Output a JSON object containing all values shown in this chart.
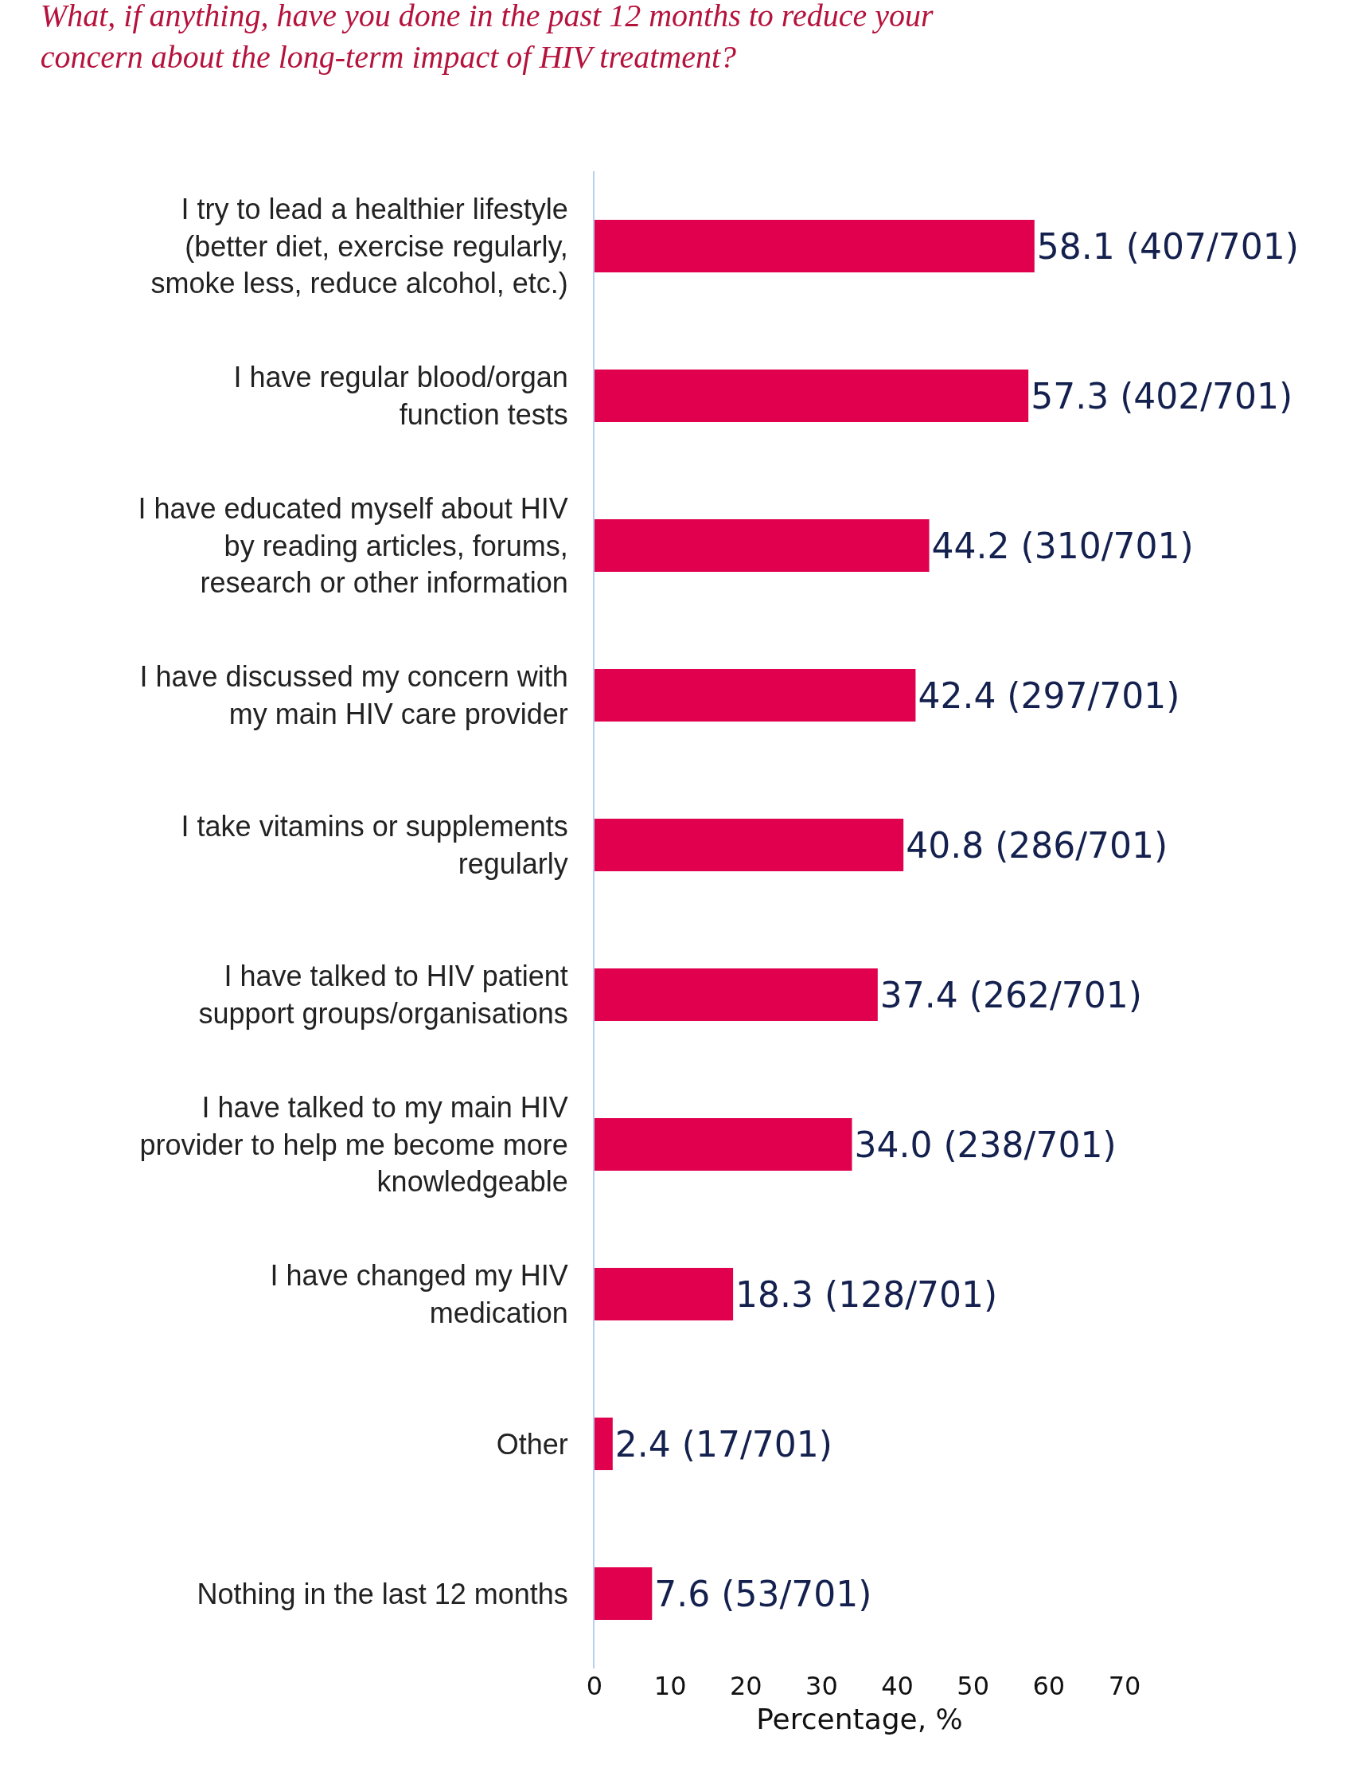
{
  "chart_data": {
    "type": "bar",
    "orientation": "horizontal",
    "title": "What, if anything, have you done in the past 12 months to reduce your\nconcern about the long-term impact of HIV treatment?",
    "xlabel": "Percentage, %",
    "categories": [
      "I try to lead a healthier lifestyle\n(better diet, exercise regularly,\nsmoke less, reduce alcohol, etc.)",
      "I have regular blood/organ\nfunction tests",
      "I have educated myself about HIV\nby reading articles, forums,\nresearch or other information",
      "I have discussed my concern with\nmy main HIV care provider",
      "I take vitamins or supplements\nregularly",
      "I have talked to HIV patient\nsupport groups/organisations",
      "I have talked to my main HIV\nprovider to help me become more\nknowledgeable",
      "I have changed my HIV\nmedication",
      "Other",
      "Nothing in the last 12 months"
    ],
    "values": [
      58.1,
      57.3,
      44.2,
      42.4,
      40.8,
      37.4,
      34.0,
      18.3,
      2.4,
      7.6
    ],
    "value_labels": [
      "58.1 (407/701)",
      "57.3 (402/701)",
      "44.2 (310/701)",
      "42.4 (297/701)",
      "40.8 (286/701)",
      "37.4 (262/701)",
      "34.0 (238/701)",
      "18.3 (128/701)",
      "2.4 (17/701)",
      "7.6 (53/701)"
    ],
    "color": "#e0004d",
    "xlim": [
      0,
      70
    ],
    "xticks": [
      0,
      10,
      20,
      30,
      40,
      50,
      60,
      70
    ],
    "grid": false,
    "legend": false
  }
}
